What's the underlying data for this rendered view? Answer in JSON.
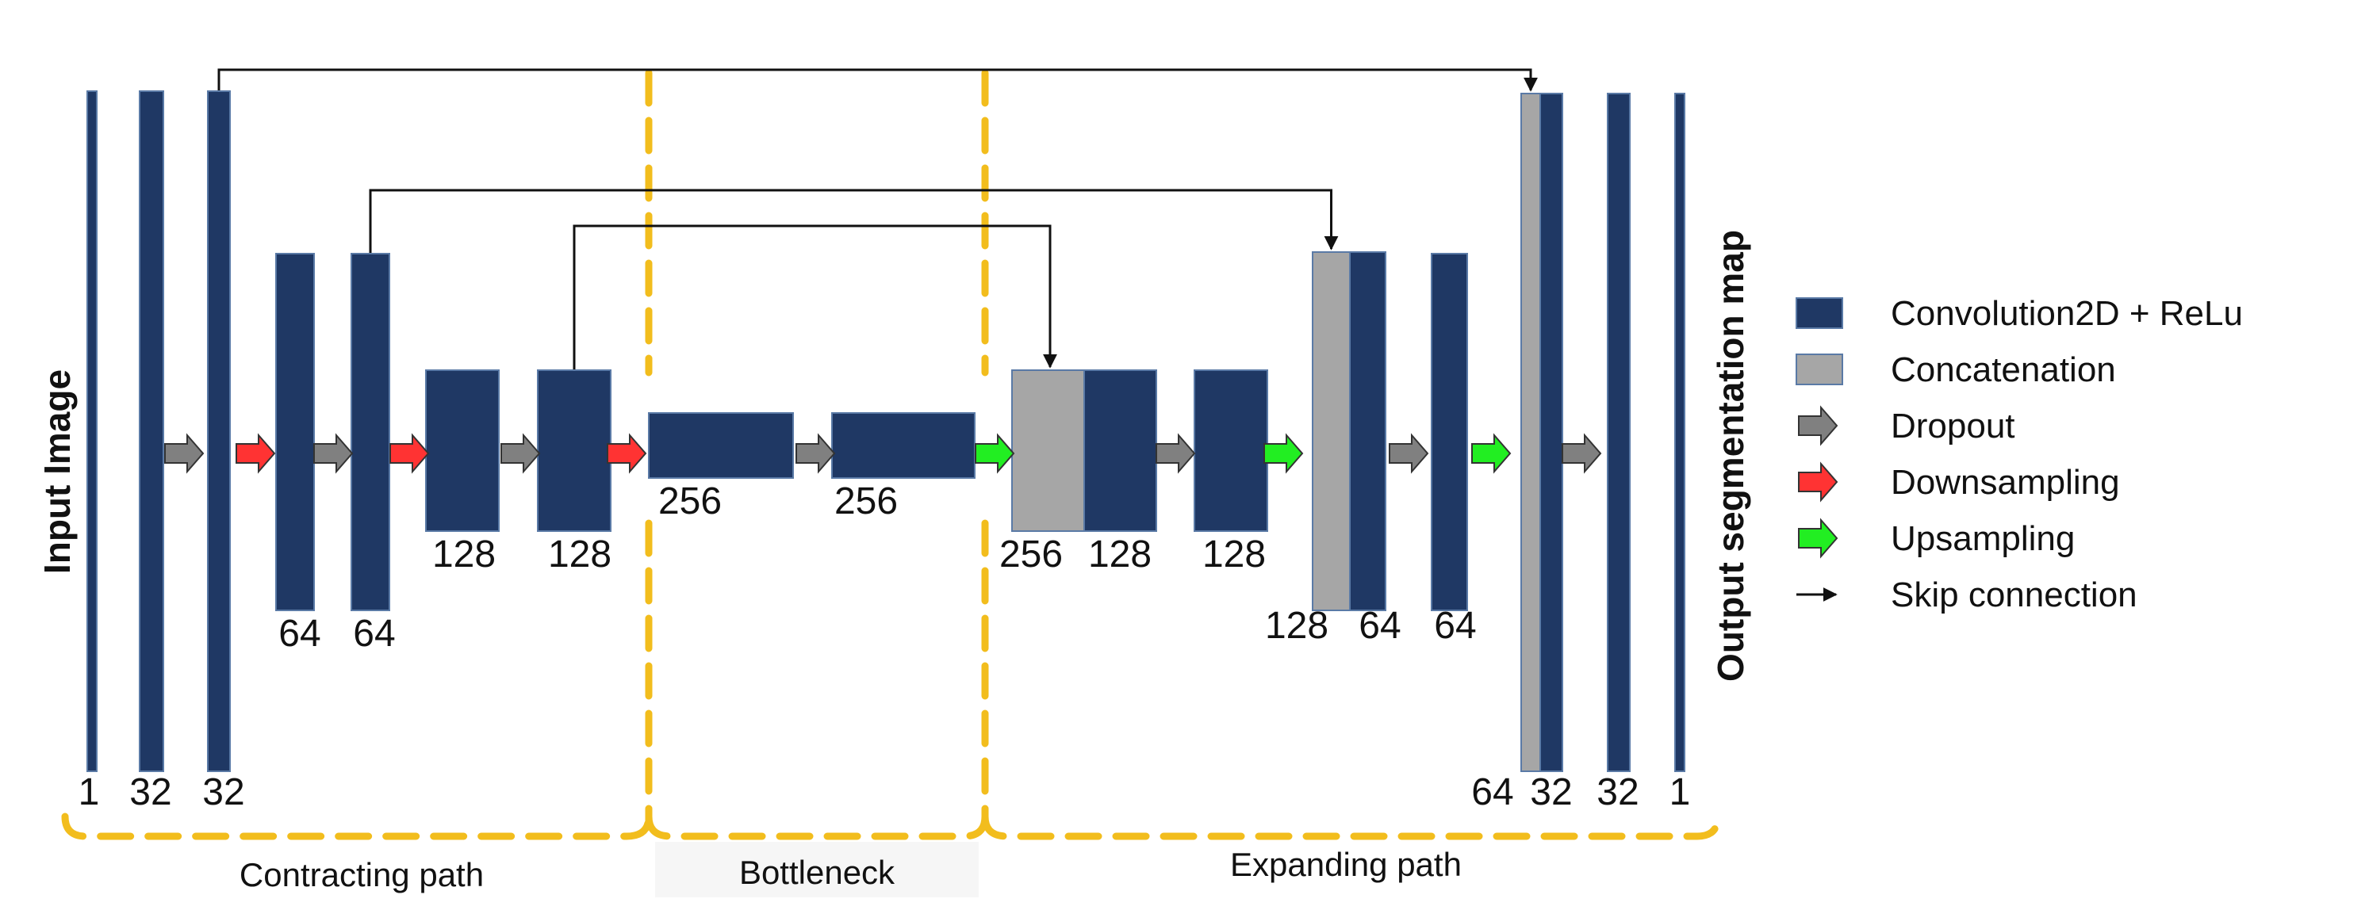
{
  "labels": {
    "input": "Input Image",
    "output": "Output segmentation map"
  },
  "blocks": [
    {
      "id": "e1",
      "kind": "conv",
      "label": "1"
    },
    {
      "id": "e2",
      "kind": "conv",
      "label": "32"
    },
    {
      "id": "e3",
      "kind": "conv",
      "label": "32"
    },
    {
      "id": "e4",
      "kind": "conv",
      "label": "64"
    },
    {
      "id": "e5",
      "kind": "conv",
      "label": "64"
    },
    {
      "id": "e6",
      "kind": "conv",
      "label": "128"
    },
    {
      "id": "e7",
      "kind": "conv",
      "label": "128"
    },
    {
      "id": "b1",
      "kind": "conv",
      "label": "256"
    },
    {
      "id": "b2",
      "kind": "conv",
      "label": "256"
    },
    {
      "id": "c1",
      "kind": "concat",
      "label": "256"
    },
    {
      "id": "d1",
      "kind": "conv",
      "label": "128"
    },
    {
      "id": "d2",
      "kind": "conv",
      "label": "128"
    },
    {
      "id": "c2",
      "kind": "concat",
      "label": "128"
    },
    {
      "id": "d3",
      "kind": "conv",
      "label": "64"
    },
    {
      "id": "d4",
      "kind": "conv",
      "label": "64"
    },
    {
      "id": "c3",
      "kind": "concat",
      "label": "64"
    },
    {
      "id": "d5",
      "kind": "conv",
      "label": "32"
    },
    {
      "id": "d6",
      "kind": "conv",
      "label": "32"
    },
    {
      "id": "d7",
      "kind": "conv",
      "label": "1"
    }
  ],
  "operations": [
    "dropout",
    "downsampling",
    "dropout",
    "downsampling",
    "dropout",
    "downsampling",
    "dropout",
    "upsampling",
    "dropout",
    "upsampling",
    "dropout",
    "upsampling",
    "dropout"
  ],
  "skip_connections": [
    {
      "from": "e3",
      "to": "c3"
    },
    {
      "from": "e5",
      "to": "c2"
    },
    {
      "from": "e7",
      "to": "c1"
    }
  ],
  "sections": [
    {
      "id": "contracting",
      "label": "Contracting path"
    },
    {
      "id": "bottleneck",
      "label": "Bottleneck"
    },
    {
      "id": "expanding",
      "label": "Expanding path"
    }
  ],
  "legend": [
    {
      "kind": "conv",
      "label": "Convolution2D + ReLu"
    },
    {
      "kind": "concat",
      "label": "Concatenation"
    },
    {
      "kind": "dropout",
      "label": "Dropout"
    },
    {
      "kind": "downsampling",
      "label": "Downsampling"
    },
    {
      "kind": "upsampling",
      "label": "Upsampling"
    },
    {
      "kind": "skip",
      "label": "Skip connection"
    }
  ],
  "colors": {
    "conv": "#1f3864",
    "concat": "#a6a6a6",
    "dropout": "#808080",
    "downsampling": "#ff3333",
    "upsampling": "#22ee22",
    "section_border": "#f2bd1d"
  }
}
